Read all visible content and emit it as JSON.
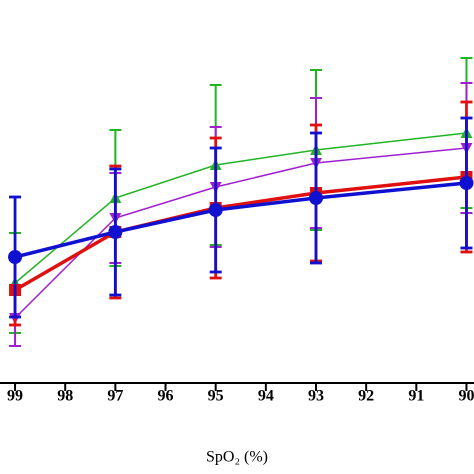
{
  "chart_data": {
    "type": "line",
    "x_label": "SpO₂ (%)",
    "x": [
      99,
      97,
      95,
      93,
      90
    ],
    "xlim": [
      99.3,
      89.85
    ],
    "xticks": [
      99,
      98,
      97,
      96,
      95,
      94,
      93,
      92,
      91,
      90
    ],
    "ylim": [
      0,
      380
    ],
    "series": [
      {
        "color": "#22b422",
        "marker": "triangle-up",
        "line_width": 1.5,
        "values": [
          97,
          182,
          215,
          230,
          247
        ],
        "errors": [
          50,
          68,
          80,
          80,
          75
        ]
      },
      {
        "color": "#a020d0",
        "marker": "triangle-down",
        "line_width": 1.5,
        "values": [
          62,
          162,
          193,
          217,
          232
        ],
        "errors": [
          28,
          45,
          60,
          65,
          65
        ]
      },
      {
        "color": "#e01010",
        "marker": "square",
        "line_width": 3.5,
        "values": [
          90,
          148,
          172,
          187,
          203
        ],
        "errors": [
          35,
          66,
          70,
          68,
          75
        ]
      },
      {
        "color": "#1010d0",
        "marker": "circle",
        "line_width": 3.5,
        "values": [
          123,
          148,
          170,
          182,
          197
        ],
        "errors": [
          60,
          63,
          62,
          65,
          65
        ]
      }
    ]
  }
}
